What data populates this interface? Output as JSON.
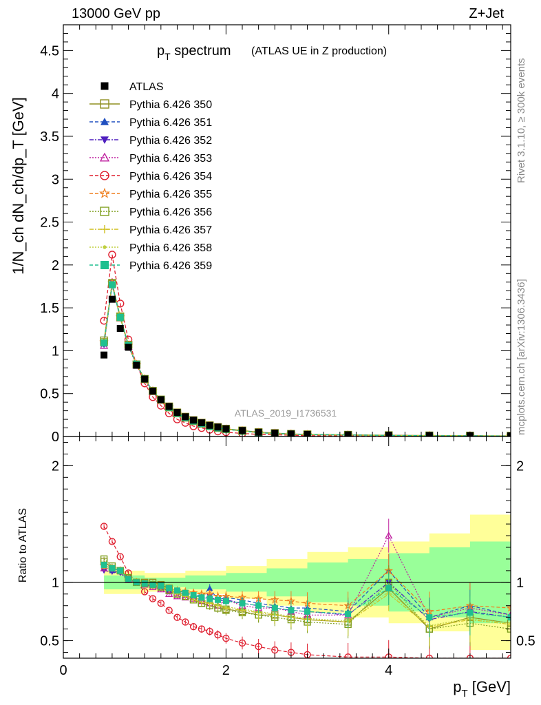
{
  "header": {
    "left": "13000 GeV pp",
    "right": "Z+Jet"
  },
  "side_labels": {
    "rivet": "Rivet 3.1.10, ≥ 300k events",
    "mcplots": "mcplots.cern.ch [arXiv:1306.3436]"
  },
  "watermark": "ATLAS_2019_I1736531",
  "chart_data": [
    {
      "type": "line",
      "panel": "main",
      "title": "p_T spectrum",
      "title_main": "p",
      "title_sub": "T",
      "title_rest": " spectrum",
      "subtitle": "(ATLAS UE in Z production)",
      "ylabel": "1/N_ch dN_ch/dp_T [GeV]",
      "xlim": [
        0,
        5.5
      ],
      "ylim": [
        0,
        4.8
      ],
      "yticks": [
        0,
        0.5,
        1,
        1.5,
        2,
        2.5,
        3,
        3.5,
        4,
        4.5
      ],
      "ytick_labels": [
        "0",
        "0.5",
        "1",
        "1.5",
        "2",
        "2.5",
        "3",
        "3.5",
        "4",
        "4.5"
      ],
      "data": {
        "name": "ATLAS",
        "x": [
          0.5,
          0.6,
          0.7,
          0.8,
          0.9,
          1.0,
          1.1,
          1.2,
          1.3,
          1.4,
          1.5,
          1.6,
          1.7,
          1.8,
          1.9,
          2.0,
          2.2,
          2.4,
          2.6,
          2.8,
          3.0,
          3.5,
          4.0,
          4.5,
          5.0,
          5.5
        ],
        "y": [
          0.95,
          1.6,
          1.26,
          1.04,
          0.83,
          0.67,
          0.53,
          0.43,
          0.35,
          0.28,
          0.23,
          0.19,
          0.16,
          0.13,
          0.11,
          0.09,
          0.07,
          0.05,
          0.04,
          0.03,
          0.025,
          0.02,
          0.015,
          0.012,
          0.01,
          0.008
        ]
      },
      "series": [
        {
          "name": "Pythia 6.426 350",
          "color": "#8f8f1f",
          "marker": "square-open",
          "dash": "",
          "scale": 1.0
        },
        {
          "name": "Pythia 6.426 351",
          "color": "#1f4fbf",
          "marker": "triangle-up",
          "dash": "5,3",
          "scale": 1.0
        },
        {
          "name": "Pythia 6.426 352",
          "color": "#4f1fbf",
          "marker": "triangle-down",
          "dash": "6,2,2,2",
          "scale": 1.0
        },
        {
          "name": "Pythia 6.426 353",
          "color": "#bf1f9f",
          "marker": "triangle-open",
          "dash": "2,2",
          "scale": 1.0
        },
        {
          "name": "Pythia 6.426 354",
          "color": "#df1f2f",
          "marker": "circle-open",
          "dash": "5,3",
          "scale": 1.0
        },
        {
          "name": "Pythia 6.426 355",
          "color": "#ef7f1f",
          "marker": "star-open",
          "dash": "5,3",
          "scale": 1.0
        },
        {
          "name": "Pythia 6.426 356",
          "color": "#7f9f1f",
          "marker": "square-open",
          "dash": "2,2",
          "scale": 1.0
        },
        {
          "name": "Pythia 6.426 357",
          "color": "#cfbf1f",
          "marker": "cross",
          "dash": "6,2,2,2",
          "scale": 1.0
        },
        {
          "name": "Pythia 6.426 358",
          "color": "#bfcf3f",
          "marker": "dot",
          "dash": "2,2",
          "scale": 1.0
        },
        {
          "name": "Pythia 6.426 359",
          "color": "#1fbf8f",
          "marker": "square",
          "dash": "5,3",
          "scale": 1.0
        }
      ],
      "mc_y": {
        "Pythia 6.426 350": [
          1.12,
          1.78,
          1.4,
          1.07,
          0.84,
          0.67,
          0.53,
          0.43,
          0.35,
          0.28,
          0.23,
          0.19,
          0.16,
          0.13,
          0.11,
          0.09,
          0.07,
          0.05,
          0.04,
          0.03,
          0.025,
          0.02,
          0.015,
          0.012,
          0.01,
          0.008
        ],
        "Pythia 6.426 351": [
          1.08,
          1.76,
          1.38,
          1.06,
          0.84,
          0.67,
          0.53,
          0.43,
          0.34,
          0.27,
          0.22,
          0.18,
          0.15,
          0.12,
          0.1,
          0.085,
          0.065,
          0.045,
          0.035,
          0.028,
          0.022,
          0.018,
          0.013,
          0.01,
          0.008,
          0.006
        ],
        "Pythia 6.426 352": [
          1.07,
          1.77,
          1.39,
          1.06,
          0.84,
          0.67,
          0.53,
          0.43,
          0.34,
          0.27,
          0.22,
          0.18,
          0.15,
          0.12,
          0.1,
          0.085,
          0.065,
          0.045,
          0.035,
          0.028,
          0.022,
          0.018,
          0.013,
          0.01,
          0.008,
          0.006
        ],
        "Pythia 6.426 353": [
          1.06,
          1.8,
          1.38,
          1.05,
          0.83,
          0.66,
          0.52,
          0.42,
          0.34,
          0.27,
          0.22,
          0.18,
          0.15,
          0.12,
          0.1,
          0.085,
          0.065,
          0.045,
          0.035,
          0.028,
          0.022,
          0.018,
          0.013,
          0.01,
          0.008,
          0.006
        ],
        "Pythia 6.426 354": [
          1.35,
          2.12,
          1.55,
          1.13,
          0.84,
          0.62,
          0.46,
          0.36,
          0.27,
          0.2,
          0.16,
          0.12,
          0.1,
          0.08,
          0.06,
          0.05,
          0.035,
          0.025,
          0.02,
          0.015,
          0.01,
          0.008,
          0.006,
          0.005,
          0.004,
          0.003
        ],
        "Pythia 6.426 355": [
          1.1,
          1.79,
          1.39,
          1.06,
          0.84,
          0.67,
          0.53,
          0.42,
          0.34,
          0.27,
          0.22,
          0.18,
          0.15,
          0.12,
          0.1,
          0.085,
          0.065,
          0.045,
          0.035,
          0.028,
          0.022,
          0.018,
          0.013,
          0.01,
          0.008,
          0.006
        ],
        "Pythia 6.426 356": [
          1.1,
          1.79,
          1.39,
          1.07,
          0.84,
          0.67,
          0.53,
          0.43,
          0.34,
          0.27,
          0.22,
          0.18,
          0.15,
          0.12,
          0.1,
          0.085,
          0.065,
          0.045,
          0.035,
          0.028,
          0.022,
          0.018,
          0.013,
          0.01,
          0.008,
          0.006
        ],
        "Pythia 6.426 357": [
          1.09,
          1.78,
          1.39,
          1.06,
          0.84,
          0.67,
          0.53,
          0.43,
          0.34,
          0.27,
          0.22,
          0.18,
          0.15,
          0.12,
          0.1,
          0.085,
          0.065,
          0.045,
          0.035,
          0.028,
          0.022,
          0.018,
          0.013,
          0.01,
          0.008,
          0.006
        ],
        "Pythia 6.426 358": [
          1.08,
          1.77,
          1.38,
          1.06,
          0.84,
          0.67,
          0.53,
          0.43,
          0.34,
          0.27,
          0.22,
          0.18,
          0.15,
          0.12,
          0.1,
          0.085,
          0.065,
          0.045,
          0.035,
          0.028,
          0.022,
          0.018,
          0.013,
          0.01,
          0.008,
          0.006
        ],
        "Pythia 6.426 359": [
          1.09,
          1.77,
          1.39,
          1.06,
          0.84,
          0.67,
          0.53,
          0.43,
          0.34,
          0.27,
          0.22,
          0.18,
          0.15,
          0.12,
          0.1,
          0.085,
          0.065,
          0.045,
          0.035,
          0.028,
          0.022,
          0.018,
          0.013,
          0.01,
          0.008,
          0.006
        ]
      }
    },
    {
      "type": "line",
      "panel": "ratio",
      "ylabel": "Ratio to ATLAS",
      "xlabel": "p_T [GeV]",
      "xlabel_main": "p",
      "xlabel_sub": "T",
      "xlabel_rest": " [GeV]",
      "xlim": [
        0,
        5.5
      ],
      "ylim": [
        0.35,
        2.25
      ],
      "yticks": [
        0.5,
        1,
        2
      ],
      "ytick_labels": [
        "0.5",
        "1",
        "2"
      ],
      "xticks": [
        0,
        2,
        4
      ],
      "xtick_labels": [
        "0",
        "2",
        "4"
      ],
      "reference_line": 1.0,
      "band_x": [
        0.5,
        1.0,
        1.5,
        2.0,
        2.5,
        3.0,
        3.5,
        4.0,
        4.5,
        5.0,
        5.5
      ],
      "band_yellow_half": [
        0.1,
        0.08,
        0.1,
        0.14,
        0.2,
        0.26,
        0.3,
        0.35,
        0.42,
        0.58,
        0.58
      ],
      "band_green_half": [
        0.06,
        0.04,
        0.06,
        0.08,
        0.12,
        0.17,
        0.2,
        0.25,
        0.3,
        0.35,
        0.35
      ],
      "ratios": {
        "Pythia 6.426 350": [
          1.18,
          1.12,
          1.1,
          1.04,
          1.0,
          1.0,
          1.0,
          0.98,
          0.95,
          0.9,
          0.88,
          0.85,
          0.82,
          0.8,
          0.78,
          0.77,
          0.75,
          0.72,
          0.72,
          0.7,
          0.68,
          0.66,
          0.95,
          0.6,
          0.7,
          0.65
        ],
        "Pythia 6.426 351": [
          1.12,
          1.1,
          1.09,
          1.02,
          1.0,
          0.98,
          0.97,
          0.95,
          0.93,
          0.92,
          0.9,
          0.9,
          0.88,
          0.95,
          0.85,
          0.87,
          0.85,
          0.82,
          0.8,
          0.78,
          0.78,
          0.75,
          1.1,
          0.7,
          0.8,
          0.72
        ],
        "Pythia 6.426 352": [
          1.1,
          1.09,
          1.08,
          1.02,
          1.0,
          0.98,
          0.97,
          0.95,
          0.92,
          0.9,
          0.88,
          0.87,
          0.85,
          0.88,
          0.84,
          0.85,
          0.82,
          0.8,
          0.78,
          0.76,
          0.75,
          0.72,
          1.0,
          0.68,
          0.75,
          0.7
        ],
        "Pythia 6.426 353": [
          1.12,
          1.12,
          1.1,
          1.02,
          1.0,
          0.98,
          0.96,
          0.94,
          0.9,
          0.88,
          0.87,
          0.86,
          0.84,
          0.82,
          0.8,
          0.85,
          0.8,
          0.78,
          0.78,
          0.75,
          0.72,
          0.72,
          1.4,
          0.7,
          0.78,
          0.72
        ],
        "Pythia 6.426 354": [
          1.48,
          1.35,
          1.22,
          1.08,
          1.0,
          0.92,
          0.86,
          0.82,
          0.76,
          0.7,
          0.66,
          0.62,
          0.6,
          0.58,
          0.55,
          0.52,
          0.48,
          0.45,
          0.42,
          0.4,
          0.38,
          0.36,
          0.36,
          0.35,
          0.35,
          0.35
        ],
        "Pythia 6.426 355": [
          1.14,
          1.12,
          1.1,
          1.03,
          1.0,
          0.99,
          0.98,
          0.97,
          0.95,
          0.93,
          0.92,
          0.91,
          0.9,
          0.9,
          0.88,
          0.88,
          0.87,
          0.86,
          0.85,
          0.84,
          0.82,
          0.8,
          1.1,
          0.75,
          0.8,
          0.78
        ],
        "Pythia 6.426 356": [
          1.2,
          1.14,
          1.1,
          1.04,
          1.0,
          0.99,
          0.98,
          0.96,
          0.93,
          0.9,
          0.88,
          0.85,
          0.82,
          0.8,
          0.78,
          0.76,
          0.74,
          0.72,
          0.7,
          0.68,
          0.66,
          0.64,
          1.0,
          0.6,
          0.65,
          0.6
        ],
        "Pythia 6.426 357": [
          1.15,
          1.12,
          1.1,
          1.03,
          1.0,
          0.99,
          0.98,
          0.96,
          0.94,
          0.9,
          0.88,
          0.85,
          0.83,
          0.82,
          0.8,
          0.78,
          0.76,
          0.74,
          0.72,
          0.7,
          0.68,
          0.66,
          0.9,
          0.62,
          0.68,
          0.64
        ],
        "Pythia 6.426 358": [
          1.13,
          1.11,
          1.09,
          1.03,
          1.0,
          0.99,
          0.98,
          0.96,
          0.94,
          0.91,
          0.89,
          0.87,
          0.85,
          0.83,
          0.81,
          0.79,
          0.77,
          0.75,
          0.73,
          0.71,
          0.69,
          0.67,
          0.92,
          0.63,
          0.69,
          0.65
        ],
        "Pythia 6.426 359": [
          1.15,
          1.12,
          1.1,
          1.03,
          1.0,
          0.99,
          0.98,
          0.97,
          0.95,
          0.93,
          0.91,
          0.89,
          0.87,
          0.86,
          0.85,
          0.84,
          0.82,
          0.8,
          0.78,
          0.76,
          0.75,
          0.73,
          0.95,
          0.7,
          0.74,
          0.7
        ]
      }
    }
  ]
}
